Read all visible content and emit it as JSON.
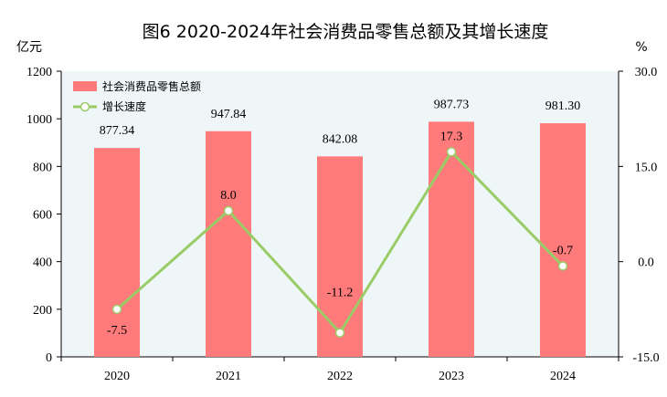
{
  "chart_data": {
    "type": "bar+line",
    "title": "图6  2020-2024年社会消费品零售总额及其增长速度",
    "categories": [
      "2020",
      "2021",
      "2022",
      "2023",
      "2024"
    ],
    "left_axis": {
      "unit": "亿元",
      "ylim": [
        0,
        1200
      ],
      "ticks": [
        0,
        200,
        400,
        600,
        800,
        1000,
        1200
      ]
    },
    "right_axis": {
      "unit": "%",
      "ylim": [
        -15,
        30
      ],
      "ticks": [
        "-15.0",
        "0.0",
        "15.0",
        "30.0"
      ],
      "tick_values": [
        -15,
        0,
        15,
        30
      ]
    },
    "series": [
      {
        "name": "社会消费品零售总额",
        "type": "bar",
        "axis": "left",
        "values": [
          877.34,
          947.84,
          842.08,
          987.73,
          981.3
        ],
        "labels": [
          "877.34",
          "947.84",
          "842.08",
          "987.73",
          "981.30"
        ],
        "color": "#ff7b7b"
      },
      {
        "name": "增长速度",
        "type": "line",
        "axis": "right",
        "values": [
          -7.5,
          8.0,
          -11.2,
          17.3,
          -0.7
        ],
        "labels": [
          "-7.5",
          "8.0",
          "-11.2",
          "17.3",
          "-0.7"
        ],
        "color": "#99cc66"
      }
    ],
    "legend_position": "top-left",
    "plot_background": "#eef6f8"
  }
}
